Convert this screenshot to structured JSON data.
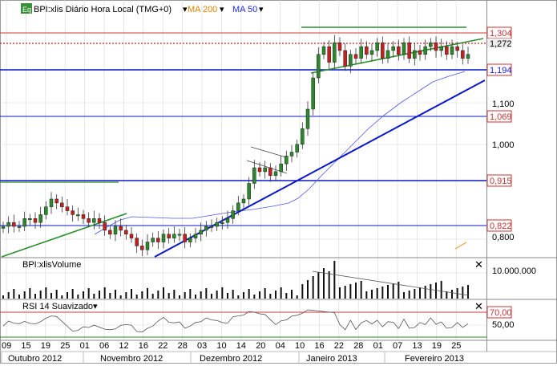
{
  "legend": {
    "eq_badge": "Eq",
    "symbol": "BPI:xlis Diário Hora Local (TMG+0)",
    "ma200": "MA 200",
    "ma50": "MA 50",
    "dropdown_glyph": "▾"
  },
  "colors": {
    "grid": "#d7d7d7",
    "up": "#2a8a2a",
    "down": "#c81e1e",
    "ma200": "#e57f00",
    "ma50": "#1a2be0",
    "blue_line": "#0a17c8",
    "green_line": "#2b8f2b",
    "red_line": "#d23b3b",
    "label_red": "#c83232",
    "label_blue": "#1a1ad0"
  },
  "price_axis": {
    "highlight_labels": [
      {
        "text": "1,304",
        "style": "red"
      },
      {
        "text": "1,272",
        "style": "plain"
      },
      {
        "text": "1,194",
        "style": "blue"
      },
      {
        "text": "1,069",
        "style": "red"
      },
      {
        "text": "0,915",
        "style": "red"
      },
      {
        "text": "0,822",
        "style": "red"
      }
    ],
    "ticks": [
      "1,100",
      "1,000",
      "0,800"
    ]
  },
  "volume_panel": {
    "title": "BPI:xlisVolume",
    "tick": "10.000.000",
    "close_glyph": "✕"
  },
  "rsi_panel": {
    "title": "RSI 14 Suavizado",
    "levels": [
      "70,00",
      "50,00"
    ],
    "close_glyph": "✕"
  },
  "x_axis": {
    "days": [
      "09",
      "15",
      "19",
      "25",
      "01",
      "06",
      "12",
      "16",
      "22",
      "28",
      "03",
      "10",
      "14",
      "20",
      "04",
      "10",
      "16",
      "22",
      "28",
      "01",
      "07",
      "13",
      "19",
      "25"
    ],
    "months": [
      "Outubro 2012",
      "Novembro 2012",
      "Dezembro 2012",
      "Janeiro 2013",
      "Fevereiro 2013"
    ]
  },
  "chart_data": {
    "type": "candlestick",
    "symbol": "BPI:xlis",
    "interval": "hourly",
    "y_range_approx": [
      0.76,
      1.37
    ],
    "closes_approx": [
      0.84,
      0.85,
      0.84,
      0.84,
      0.86,
      0.86,
      0.85,
      0.87,
      0.89,
      0.91,
      0.9,
      0.89,
      0.88,
      0.87,
      0.87,
      0.86,
      0.85,
      0.86,
      0.85,
      0.83,
      0.82,
      0.84,
      0.83,
      0.82,
      0.81,
      0.79,
      0.78,
      0.8,
      0.81,
      0.8,
      0.82,
      0.81,
      0.82,
      0.82,
      0.8,
      0.81,
      0.82,
      0.83,
      0.84,
      0.84,
      0.85,
      0.85,
      0.86,
      0.88,
      0.9,
      0.91,
      0.95,
      0.99,
      0.98,
      0.99,
      0.97,
      0.98,
      1.0,
      1.02,
      1.03,
      1.05,
      1.09,
      1.14,
      1.22,
      1.28,
      1.3,
      1.26,
      1.31,
      1.29,
      1.25,
      1.28,
      1.27,
      1.3,
      1.28,
      1.29,
      1.31,
      1.27,
      1.29,
      1.3,
      1.28,
      1.31,
      1.27,
      1.29,
      1.28,
      1.3,
      1.31,
      1.29,
      1.3,
      1.28,
      1.3,
      1.29,
      1.27,
      1.28
    ]
  }
}
